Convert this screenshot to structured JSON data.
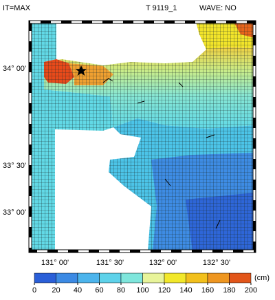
{
  "header": {
    "left": "IT=MAX",
    "center": "T 9119_1",
    "right": "WAVE: NO"
  },
  "map": {
    "lat_labels": [
      "34° 00'",
      "33° 30'",
      "33° 00'"
    ],
    "lon_labels": [
      "131° 00'",
      "131° 30'",
      "132° 00'",
      "132° 30'"
    ]
  },
  "colorbar": {
    "ticks": [
      0,
      20,
      40,
      60,
      80,
      100,
      120,
      140,
      160,
      180,
      200
    ],
    "colors": [
      "#2a5fd8",
      "#3c8ae4",
      "#4cb4ec",
      "#5ed2ea",
      "#7fe6dc",
      "#e8f49a",
      "#f2e82a",
      "#f2c01c",
      "#ee9620",
      "#e2561a"
    ],
    "unit": "(cm)"
  }
}
